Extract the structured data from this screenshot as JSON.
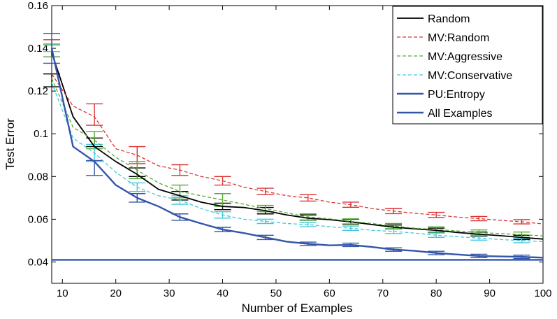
{
  "chart_data": {
    "type": "line",
    "xlabel": "Number of Examples",
    "ylabel": "Test Error",
    "xlim": [
      8,
      100
    ],
    "ylim": [
      0.03,
      0.16
    ],
    "xticks": [
      10,
      20,
      30,
      40,
      50,
      60,
      70,
      80,
      90,
      100
    ],
    "yticks": [
      0.04,
      0.06,
      0.08,
      0.1,
      0.12,
      0.14,
      0.16
    ],
    "xtick_labels": [
      "10",
      "20",
      "30",
      "40",
      "50",
      "60",
      "70",
      "80",
      "90",
      "100"
    ],
    "ytick_labels": [
      "0.04",
      "0.06",
      "0.08",
      "0.1",
      "0.12",
      "0.14",
      "0.16"
    ],
    "grid": false,
    "legend_position": "top-right",
    "series": [
      {
        "name": "Random",
        "color": "#000000",
        "dash": "solid",
        "x": [
          8,
          12,
          16,
          20,
          24,
          28,
          32,
          36,
          40,
          44,
          48,
          52,
          56,
          60,
          64,
          68,
          72,
          76,
          80,
          84,
          88,
          92,
          96,
          100
        ],
        "y": [
          0.138,
          0.108,
          0.094,
          0.087,
          0.081,
          0.074,
          0.071,
          0.068,
          0.066,
          0.0655,
          0.064,
          0.062,
          0.0605,
          0.0598,
          0.0588,
          0.0575,
          0.0563,
          0.0555,
          0.0548,
          0.0538,
          0.053,
          0.0523,
          0.0515,
          0.0507
        ],
        "error_x": [
          8,
          16,
          24,
          32,
          40,
          48,
          56,
          64,
          72,
          80,
          88,
          96
        ],
        "error_y": [
          0.125,
          0.096,
          0.082,
          0.071,
          0.066,
          0.064,
          0.0608,
          0.0588,
          0.0563,
          0.0548,
          0.053,
          0.0515
        ],
        "error_half": [
          0.003,
          0.002,
          0.002,
          0.002,
          0.0015,
          0.0015,
          0.0012,
          0.0012,
          0.001,
          0.001,
          0.001,
          0.001
        ]
      },
      {
        "name": "MV:Random",
        "color": "#dd3333",
        "dash": "dashed",
        "x": [
          8,
          12,
          16,
          20,
          24,
          28,
          32,
          36,
          40,
          44,
          48,
          52,
          56,
          60,
          64,
          68,
          72,
          76,
          80,
          84,
          88,
          92,
          96,
          100
        ],
        "y": [
          0.128,
          0.113,
          0.108,
          0.093,
          0.09,
          0.085,
          0.083,
          0.08,
          0.078,
          0.075,
          0.073,
          0.071,
          0.07,
          0.068,
          0.0668,
          0.065,
          0.0638,
          0.0628,
          0.062,
          0.061,
          0.0603,
          0.0595,
          0.0588,
          0.0578
        ],
        "error_x": [
          8,
          16,
          24,
          32,
          40,
          48,
          56,
          64,
          72,
          80,
          88,
          96
        ],
        "error_y": [
          0.14,
          0.109,
          0.09,
          0.083,
          0.078,
          0.073,
          0.07,
          0.0668,
          0.0638,
          0.062,
          0.0603,
          0.0588
        ],
        "error_half": [
          0.004,
          0.005,
          0.004,
          0.0025,
          0.002,
          0.0015,
          0.0015,
          0.0012,
          0.0012,
          0.0012,
          0.001,
          0.001
        ]
      },
      {
        "name": "MV:Aggressive",
        "color": "#55aa33",
        "dash": "dashed",
        "x": [
          8,
          12,
          16,
          20,
          24,
          28,
          32,
          36,
          40,
          44,
          48,
          52,
          56,
          60,
          64,
          68,
          72,
          76,
          80,
          84,
          88,
          92,
          96,
          100
        ],
        "y": [
          0.126,
          0.103,
          0.097,
          0.089,
          0.083,
          0.077,
          0.073,
          0.071,
          0.069,
          0.067,
          0.065,
          0.063,
          0.061,
          0.0602,
          0.059,
          0.058,
          0.0568,
          0.0558,
          0.0552,
          0.0545,
          0.0538,
          0.0533,
          0.0528,
          0.0522
        ],
        "error_x": [
          8,
          16,
          24,
          32,
          40,
          48,
          56,
          64,
          72,
          80,
          88,
          96
        ],
        "error_y": [
          0.139,
          0.097,
          0.083,
          0.073,
          0.069,
          0.065,
          0.061,
          0.059,
          0.0568,
          0.0552,
          0.0538,
          0.0528
        ],
        "error_half": [
          0.003,
          0.004,
          0.004,
          0.003,
          0.003,
          0.0015,
          0.0015,
          0.0012,
          0.0012,
          0.0012,
          0.0012,
          0.0012
        ]
      },
      {
        "name": "MV:Conservative",
        "color": "#44c8dd",
        "dash": "dashed",
        "x": [
          8,
          12,
          16,
          20,
          24,
          28,
          32,
          36,
          40,
          44,
          48,
          52,
          56,
          60,
          64,
          68,
          72,
          76,
          80,
          84,
          88,
          92,
          96,
          100
        ],
        "y": [
          0.124,
          0.098,
          0.091,
          0.082,
          0.075,
          0.071,
          0.069,
          0.065,
          0.062,
          0.06,
          0.059,
          0.058,
          0.0575,
          0.0565,
          0.0558,
          0.0548,
          0.0543,
          0.0535,
          0.0525,
          0.0518,
          0.0512,
          0.0505,
          0.05,
          0.0495
        ],
        "error_x": [
          8,
          16,
          24,
          32,
          40,
          48,
          56,
          64,
          72,
          80,
          88,
          96
        ],
        "error_y": [
          0.14,
          0.091,
          0.075,
          0.069,
          0.062,
          0.059,
          0.0575,
          0.0558,
          0.0543,
          0.0525,
          0.0512,
          0.05
        ],
        "error_half": [
          0.0015,
          0.004,
          0.002,
          0.002,
          0.0015,
          0.001,
          0.001,
          0.001,
          0.001,
          0.001,
          0.001,
          0.001
        ]
      },
      {
        "name": "PU:Entropy",
        "color": "#3355aa",
        "dash": "solid",
        "x": [
          8,
          12,
          16,
          20,
          24,
          28,
          32,
          36,
          40,
          44,
          48,
          52,
          56,
          60,
          64,
          68,
          72,
          76,
          80,
          84,
          88,
          92,
          96,
          100
        ],
        "y": [
          0.14,
          0.094,
          0.087,
          0.076,
          0.07,
          0.066,
          0.061,
          0.058,
          0.0552,
          0.0535,
          0.0515,
          0.0495,
          0.0485,
          0.0478,
          0.048,
          0.047,
          0.0458,
          0.0452,
          0.0442,
          0.0435,
          0.0428,
          0.0426,
          0.0424,
          0.042
        ],
        "error_x": [
          8,
          16,
          24,
          32,
          40,
          48,
          56,
          64,
          72,
          80,
          88,
          96
        ],
        "error_y": [
          0.14,
          0.084,
          0.07,
          0.061,
          0.0552,
          0.0515,
          0.0485,
          0.048,
          0.0458,
          0.0442,
          0.0428,
          0.0424
        ],
        "error_half": [
          0.007,
          0.0035,
          0.002,
          0.0015,
          0.001,
          0.001,
          0.0008,
          0.0008,
          0.0008,
          0.0008,
          0.0008,
          0.0008
        ]
      },
      {
        "name": "All Examples",
        "color": "#3355aa",
        "dash": "solid",
        "x": [
          8,
          100
        ],
        "y": [
          0.041,
          0.041
        ]
      }
    ]
  }
}
